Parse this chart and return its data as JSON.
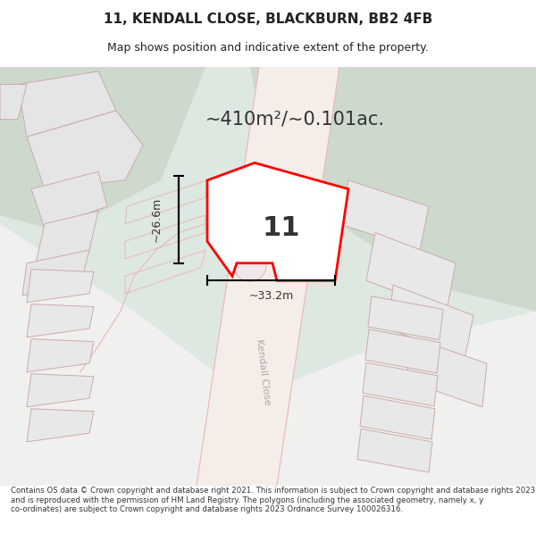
{
  "title": "11, KENDALL CLOSE, BLACKBURN, BB2 4FB",
  "subtitle": "Map shows position and indicative extent of the property.",
  "area_text": "~410m²/~0.101ac.",
  "property_number": "11",
  "dim_width": "~33.2m",
  "dim_height": "~26.6m",
  "road_label": "Kendall Close",
  "footer_text": "Contains OS data © Crown copyright and database right 2021. This information is subject to Crown copyright and database rights 2023 and is reproduced with the permission of HM Land Registry. The polygons (including the associated geometry, namely x, y co-ordinates) are subject to Crown copyright and database rights 2023 Ordnance Survey 100026316.",
  "bg_color": "#dde8e0",
  "map_bg": "#dde8e0",
  "road_bg": "#f0ece8",
  "plot_fill": "#f5f5f5",
  "highlight_fill": "white",
  "highlight_stroke": "red",
  "road_outline": "#e8b8b8",
  "building_fill": "#e8e8e8",
  "building_stroke": "#d0c0c0",
  "title_color": "#222222",
  "footer_color": "#333333",
  "map_area_bg": "#f0f0ee"
}
